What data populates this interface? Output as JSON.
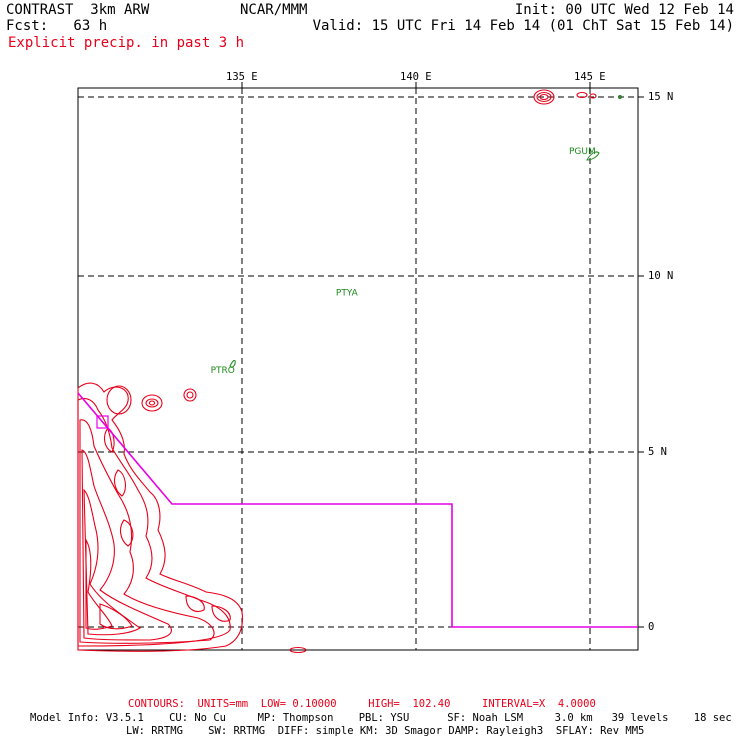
{
  "header": {
    "model": "CONTRAST  3km ARW",
    "forecast": "Fcst:   63 h",
    "center": "NCAR/MMM",
    "init": "Init: 00 UTC Wed 12 Feb 14",
    "valid": "Valid: 15 UTC Fri 14 Feb 14 (01 ChT Sat 15 Feb 14)",
    "field_title": "Explicit precip. in past 3 h"
  },
  "colors": {
    "precip": "#e8001a",
    "flight_track": "#e600e6",
    "station": "#1a8a1a",
    "grid": "#000000"
  },
  "axes": {
    "lon_labels": [
      "135 E",
      "140 E",
      "145 E"
    ],
    "lat_labels": [
      "15 N",
      "10 N",
      "5 N",
      "0"
    ]
  },
  "stations": [
    {
      "id": "PGUM",
      "lon": 144.8,
      "lat": 13.5
    },
    {
      "id": "PTYA",
      "lon": 138.1,
      "lat": 9.5
    },
    {
      "id": "PTRO",
      "lon": 134.5,
      "lat": 7.3
    }
  ],
  "footer": {
    "contours": "CONTOURS:  UNITS=mm  LOW= 0.10000     HIGH=  102.40     INTERVAL=X  4.0000",
    "model_info_1": "Model Info: V3.5.1    CU: No Cu     MP: Thompson    PBL: YSU      SF: Noah LSM     3.0 km   39 levels    18 sec",
    "model_info_2": "LW: RRTMG    SW: RRTMG  DIFF: simple KM: 3D Smagor DAMP: Rayleigh3  SFLAY: Rev MM5"
  }
}
